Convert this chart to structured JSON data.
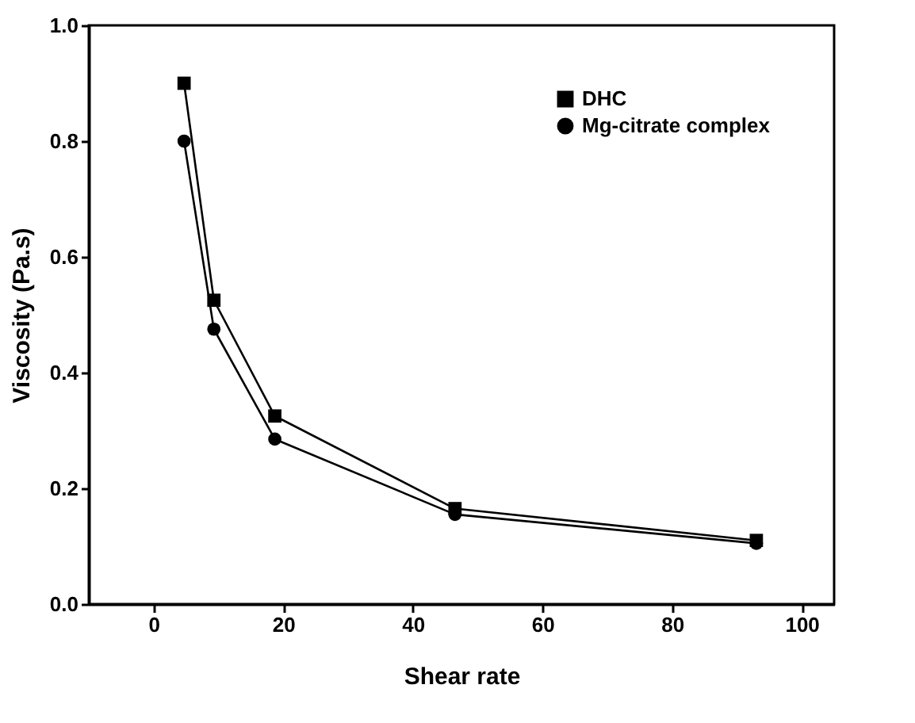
{
  "chart_data": {
    "type": "line",
    "xlabel": "Shear rate",
    "ylabel": "Viscosity (Pa.s)",
    "x": [
      4.7,
      9.3,
      18.7,
      46.5,
      93
    ],
    "series": [
      {
        "name": "DHC",
        "color": "#000000",
        "marker": "square",
        "values": [
          0.9,
          0.525,
          0.325,
          0.165,
          0.11
        ]
      },
      {
        "name": "Mg-citrate complex",
        "color": "#000000",
        "marker": "circle",
        "values": [
          0.8,
          0.475,
          0.285,
          0.155,
          0.105
        ]
      }
    ],
    "xlim": [
      -10,
      105
    ],
    "xticks": [
      0,
      20,
      40,
      60,
      80,
      100
    ],
    "ylim": [
      0,
      1
    ],
    "yticks": [
      {
        "value": 0,
        "label": "0.0"
      },
      {
        "value": 0.2,
        "label": "0.2"
      },
      {
        "value": 0.4,
        "label": "0.4"
      },
      {
        "value": 0.6,
        "label": "0.6"
      },
      {
        "value": 0.8,
        "label": "0.8"
      },
      {
        "value": 1,
        "label": "1.0"
      }
    ],
    "grid": false,
    "legend": "top right",
    "line_style": "solid"
  }
}
